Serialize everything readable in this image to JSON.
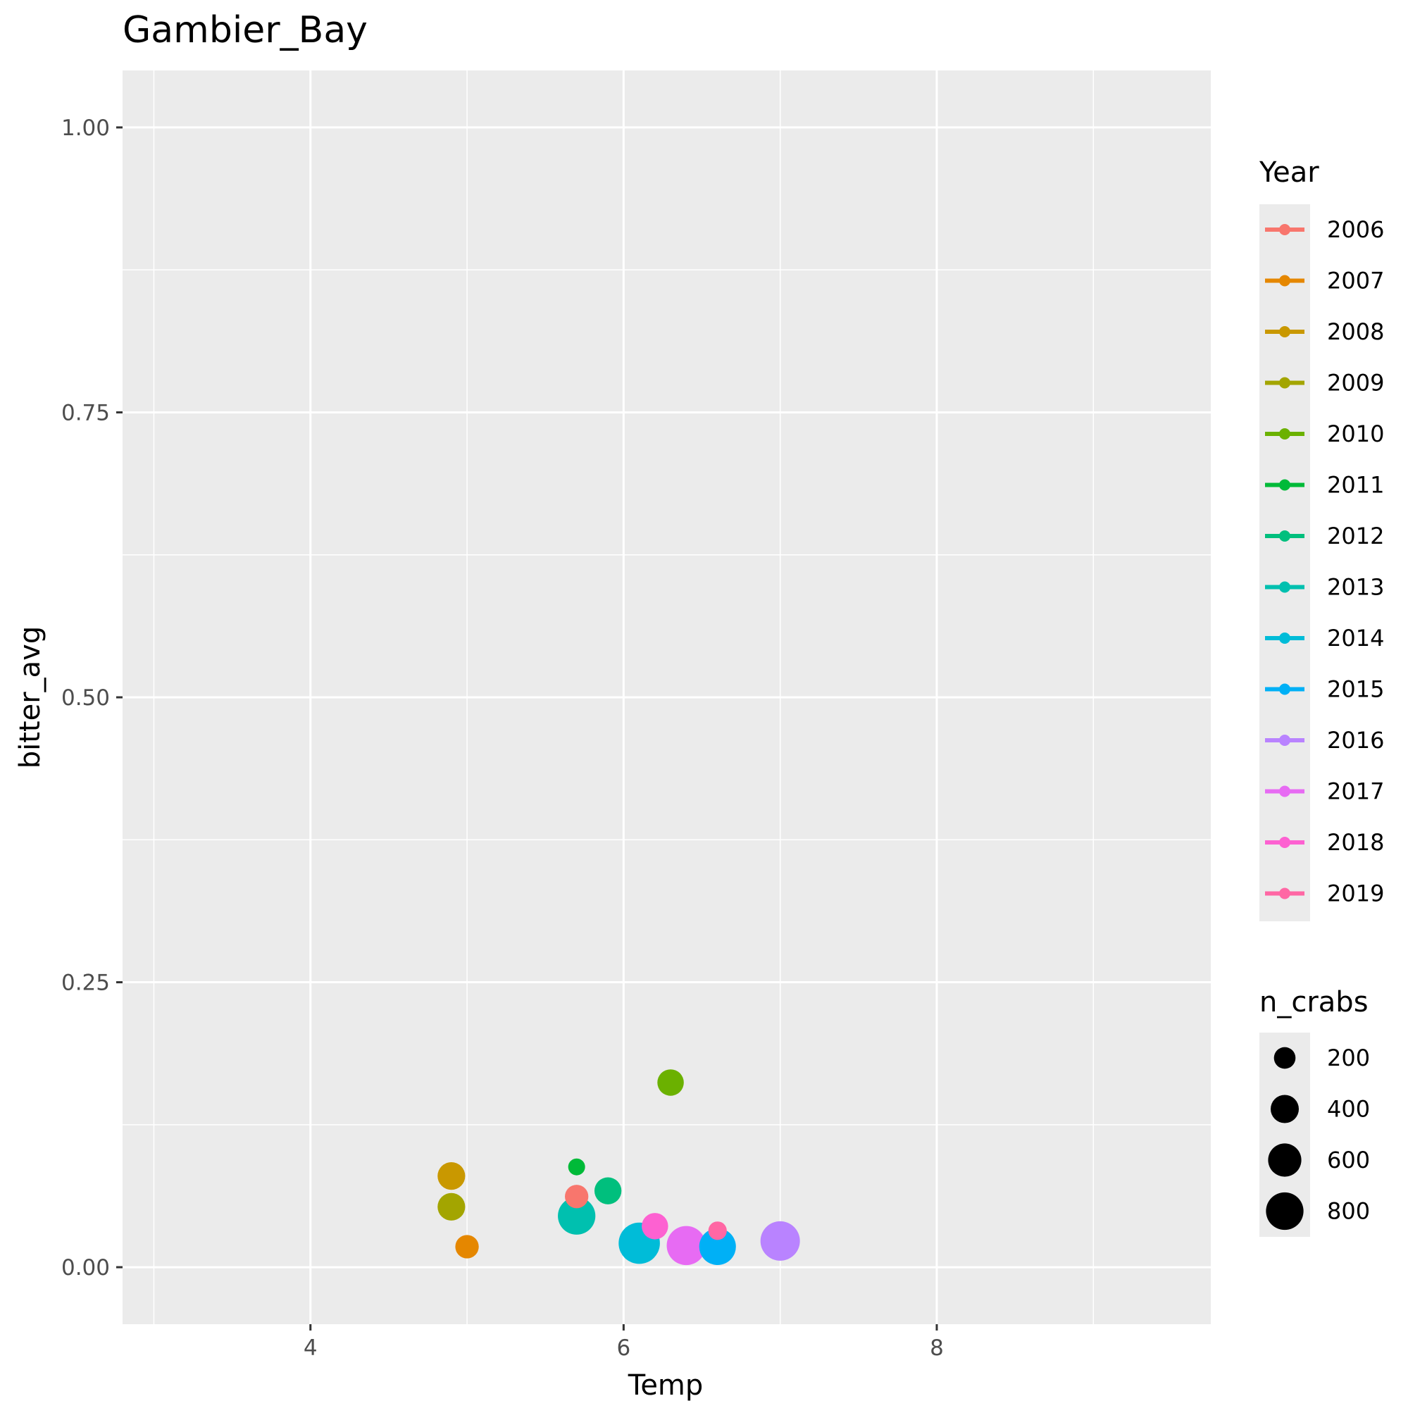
{
  "chart_data": {
    "type": "scatter",
    "title": "Gambier_Bay",
    "xlabel": "Temp",
    "ylabel": "bitter_avg",
    "xlim": [
      2.8,
      9.75
    ],
    "ylim": [
      -0.05,
      1.05
    ],
    "x_ticks": [
      4,
      6,
      8
    ],
    "x_tick_labels": [
      "4",
      "6",
      "8"
    ],
    "y_ticks": [
      0,
      0.25,
      0.5,
      0.75,
      1.0
    ],
    "y_tick_labels": [
      "0.00",
      "0.25",
      "0.50",
      "0.75",
      "1.00"
    ],
    "grid": true,
    "panel_background": "#ebebeb",
    "color_legend": {
      "title": "Year",
      "position": "right",
      "entries": [
        {
          "label": "2006",
          "color": "#F8766D"
        },
        {
          "label": "2007",
          "color": "#E58700"
        },
        {
          "label": "2008",
          "color": "#C99800"
        },
        {
          "label": "2009",
          "color": "#A3A500"
        },
        {
          "label": "2010",
          "color": "#6BB100"
        },
        {
          "label": "2011",
          "color": "#00BA38"
        },
        {
          "label": "2012",
          "color": "#00BF7D"
        },
        {
          "label": "2013",
          "color": "#00C0AF"
        },
        {
          "label": "2014",
          "color": "#00BCD8"
        },
        {
          "label": "2015",
          "color": "#00B0F6"
        },
        {
          "label": "2016",
          "color": "#B983FF"
        },
        {
          "label": "2017",
          "color": "#E76BF3"
        },
        {
          "label": "2018",
          "color": "#FD61D1"
        },
        {
          "label": "2019",
          "color": "#FF67A4"
        }
      ]
    },
    "size_legend": {
      "title": "n_crabs",
      "position": "right",
      "entries": [
        {
          "label": "200",
          "value": 200
        },
        {
          "label": "400",
          "value": 400
        },
        {
          "label": "600",
          "value": 600
        },
        {
          "label": "800",
          "value": 800
        }
      ]
    },
    "points": [
      {
        "year": "2006",
        "temp": 5.7,
        "bitter_avg": 0.062,
        "n_crabs": 250
      },
      {
        "year": "2007",
        "temp": 5.0,
        "bitter_avg": 0.018,
        "n_crabs": 250
      },
      {
        "year": "2008",
        "temp": 4.9,
        "bitter_avg": 0.08,
        "n_crabs": 380
      },
      {
        "year": "2009",
        "temp": 4.9,
        "bitter_avg": 0.053,
        "n_crabs": 380
      },
      {
        "year": "2010",
        "temp": 6.3,
        "bitter_avg": 0.162,
        "n_crabs": 340
      },
      {
        "year": "2011",
        "temp": 5.7,
        "bitter_avg": 0.088,
        "n_crabs": 100
      },
      {
        "year": "2012",
        "temp": 5.9,
        "bitter_avg": 0.067,
        "n_crabs": 360
      },
      {
        "year": "2013",
        "temp": 5.7,
        "bitter_avg": 0.045,
        "n_crabs": 800
      },
      {
        "year": "2014",
        "temp": 6.1,
        "bitter_avg": 0.021,
        "n_crabs": 1000
      },
      {
        "year": "2015",
        "temp": 6.6,
        "bitter_avg": 0.018,
        "n_crabs": 760
      },
      {
        "year": "2016",
        "temp": 7.0,
        "bitter_avg": 0.023,
        "n_crabs": 900
      },
      {
        "year": "2017",
        "temp": 6.4,
        "bitter_avg": 0.019,
        "n_crabs": 880
      },
      {
        "year": "2018",
        "temp": 6.2,
        "bitter_avg": 0.036,
        "n_crabs": 340
      },
      {
        "year": "2019",
        "temp": 6.6,
        "bitter_avg": 0.032,
        "n_crabs": 130
      }
    ]
  }
}
